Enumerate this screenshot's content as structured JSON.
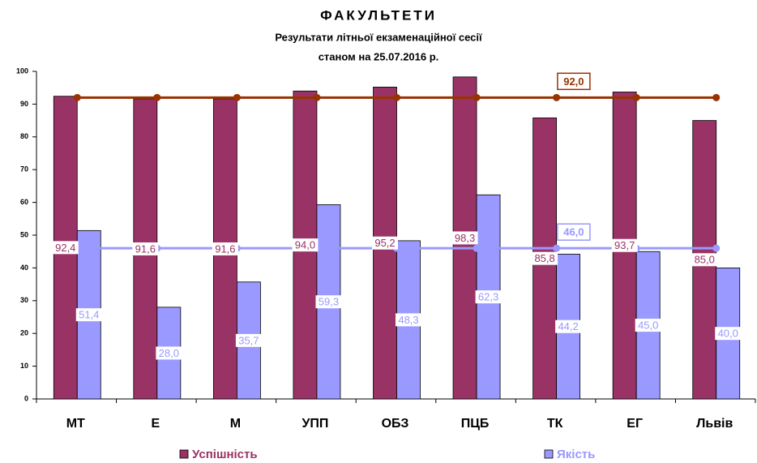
{
  "chart_data": {
    "type": "bar",
    "title": "ФАКУЛЬТЕТИ",
    "subtitle": [
      "Результати літньої екзаменаційної сесії",
      "станом на 25.07.2016 р."
    ],
    "categories": [
      "МТ",
      "Е",
      "М",
      "УПП",
      "ОБЗ",
      "ПЦБ",
      "ТК",
      "ЕГ",
      "Львів"
    ],
    "series": [
      {
        "name": "Успішність",
        "color": "#993366",
        "values": [
          92.4,
          91.6,
          91.6,
          94.0,
          95.2,
          98.3,
          85.8,
          93.7,
          85.0
        ],
        "value_labels": [
          "92,4",
          "91,6",
          "91,6",
          "94,0",
          "95,2",
          "98,3",
          "85,8",
          "93,7",
          "85,0"
        ]
      },
      {
        "name": "Якість",
        "color": "#9999ff",
        "values": [
          51.4,
          28.0,
          35.7,
          59.3,
          48.3,
          62.3,
          44.2,
          45.0,
          40.0
        ],
        "value_labels": [
          "51,4",
          "28,0",
          "35,7",
          "59,3",
          "48,3",
          "62,3",
          "44,2",
          "45,0",
          "40,0"
        ]
      }
    ],
    "averages": [
      {
        "value": 92.0,
        "label": "92,0",
        "color": "#993300"
      },
      {
        "value": 46.0,
        "label": "46,0",
        "color": "#9999ff"
      }
    ],
    "ylim": [
      0,
      100
    ],
    "yticks": [
      0,
      10,
      20,
      30,
      40,
      50,
      60,
      70,
      80,
      90,
      100
    ]
  }
}
